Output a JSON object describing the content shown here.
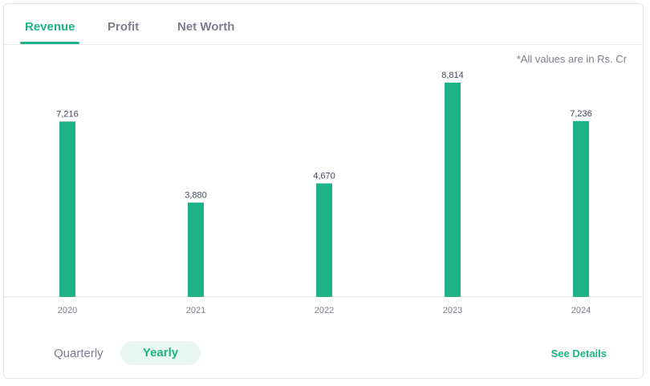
{
  "tabs": [
    {
      "label": "Revenue",
      "active": true
    },
    {
      "label": "Profit",
      "active": false
    },
    {
      "label": "Net Worth",
      "active": false
    }
  ],
  "note": "*All values are in Rs. Cr",
  "toggle": {
    "quarterly": "Quarterly",
    "yearly": "Yearly",
    "selected": "Yearly"
  },
  "see_details": "See Details",
  "colors": {
    "accent": "#1db386",
    "bar": "#1db386",
    "text_muted": "#7c7e8c"
  },
  "chart_data": {
    "type": "bar",
    "categories": [
      "2020",
      "2021",
      "2022",
      "2023",
      "2024"
    ],
    "values": [
      7216,
      3880,
      4670,
      8814,
      7236
    ],
    "value_labels": [
      "7,216",
      "3,880",
      "4,670",
      "8,814",
      "7,236"
    ],
    "ylim": [
      0,
      8814
    ],
    "grid": false,
    "legend": "none"
  }
}
